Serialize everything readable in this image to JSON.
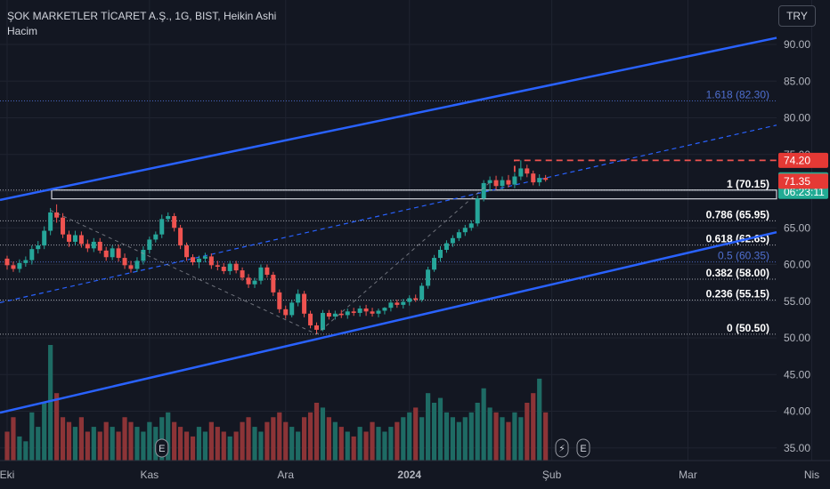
{
  "header": {
    "title": "ŞOK MARKETLER TİCARET A.Ş., 1G, BIST, Heikin Ashi",
    "volume_label": "Hacim"
  },
  "currency": "TRY",
  "colors": {
    "background": "#131722",
    "up": "#26a69a",
    "down": "#ef5350",
    "volume_up": "#1e6b64",
    "volume_down": "#8c3437",
    "channel": "#2962ff",
    "fib_lines": "#d1d4dc",
    "fib_blue": "#4f6fd0",
    "target_red": "#ef5350"
  },
  "chart_data": {
    "type": "candlestick",
    "y_axis": {
      "ticks": [
        35,
        40,
        45,
        50,
        55,
        60,
        65,
        70,
        75,
        80,
        85,
        90
      ],
      "tick_labels": [
        "35.00",
        "40.00",
        "45.00",
        "50.00",
        "55.00",
        "60.00",
        "65.00",
        "70.00",
        "75.00",
        "80.00",
        "85.00",
        "90.00"
      ]
    },
    "x_axis": {
      "labels": [
        {
          "text": "Eki",
          "bar": 0
        },
        {
          "text": "Kas",
          "bar": 23
        },
        {
          "text": "Ara",
          "bar": 45
        },
        {
          "text": "2024",
          "bar": 65
        },
        {
          "text": "Şub",
          "bar": 88
        },
        {
          "text": "Mar",
          "bar": 110
        },
        {
          "text": "Nis",
          "bar": 130
        }
      ]
    },
    "price_labels": {
      "last": {
        "value": "71.55",
        "countdown": "06:23:11"
      },
      "high": "74.20",
      "low": "71.35"
    },
    "fibonacci": [
      {
        "label": "1 (70.15)",
        "value": 70.15
      },
      {
        "label": "0.786 (65.95)",
        "value": 65.95
      },
      {
        "label": "0.618 (62.65)",
        "value": 62.65
      },
      {
        "label": "0.5 (60.35)",
        "value": 60.35
      },
      {
        "label": "0.382 (58.00)",
        "value": 58.0
      },
      {
        "label": "0.236 (55.15)",
        "value": 55.15
      },
      {
        "label": "0 (50.50)",
        "value": 50.5
      },
      {
        "label": "1.618 (82.30)",
        "value": 82.3
      }
    ],
    "candles": [
      [
        60.8,
        61.2,
        59.3,
        59.9
      ],
      [
        59.9,
        60.4,
        59.0,
        59.4
      ],
      [
        59.4,
        60.7,
        58.9,
        60.2
      ],
      [
        60.2,
        61.1,
        59.7,
        60.6
      ],
      [
        60.6,
        62.6,
        60.0,
        62.1
      ],
      [
        62.1,
        63.2,
        61.5,
        62.6
      ],
      [
        62.6,
        65.2,
        62.1,
        64.6
      ],
      [
        64.6,
        67.7,
        64.0,
        67.1
      ],
      [
        67.1,
        68.2,
        65.7,
        66.4
      ],
      [
        66.4,
        67.0,
        63.6,
        64.1
      ],
      [
        64.1,
        64.6,
        62.4,
        63.1
      ],
      [
        63.1,
        64.6,
        62.6,
        64.0
      ],
      [
        64.0,
        64.5,
        62.3,
        62.8
      ],
      [
        62.8,
        63.4,
        61.7,
        62.2
      ],
      [
        62.2,
        63.6,
        61.7,
        63.1
      ],
      [
        63.1,
        63.6,
        61.5,
        61.9
      ],
      [
        61.9,
        62.4,
        60.5,
        61.0
      ],
      [
        61.0,
        62.6,
        60.6,
        62.2
      ],
      [
        62.2,
        62.7,
        60.4,
        60.9
      ],
      [
        60.9,
        61.5,
        59.4,
        59.9
      ],
      [
        59.9,
        60.5,
        58.9,
        59.4
      ],
      [
        59.4,
        61.0,
        59.0,
        60.5
      ],
      [
        60.5,
        62.5,
        60.0,
        62.0
      ],
      [
        62.0,
        63.8,
        61.5,
        63.4
      ],
      [
        63.4,
        64.5,
        63.0,
        64.1
      ],
      [
        64.1,
        66.8,
        63.6,
        66.2
      ],
      [
        66.2,
        67.1,
        65.8,
        66.6
      ],
      [
        66.6,
        67.0,
        64.5,
        65.0
      ],
      [
        65.0,
        65.4,
        62.1,
        62.6
      ],
      [
        62.6,
        63.0,
        60.5,
        61.0
      ],
      [
        61.0,
        61.4,
        59.9,
        60.3
      ],
      [
        60.3,
        61.2,
        59.5,
        60.8
      ],
      [
        60.8,
        61.6,
        60.3,
        61.1
      ],
      [
        61.1,
        61.5,
        59.4,
        59.9
      ],
      [
        59.9,
        60.5,
        59.2,
        59.7
      ],
      [
        59.7,
        60.2,
        58.7,
        59.1
      ],
      [
        59.1,
        60.5,
        58.6,
        60.1
      ],
      [
        60.1,
        60.5,
        58.8,
        59.2
      ],
      [
        59.2,
        59.6,
        57.8,
        58.2
      ],
      [
        58.2,
        58.7,
        56.8,
        57.3
      ],
      [
        57.3,
        58.2,
        56.8,
        57.8
      ],
      [
        57.8,
        60.0,
        57.3,
        59.6
      ],
      [
        59.6,
        60.0,
        58.2,
        58.6
      ],
      [
        58.6,
        59.0,
        55.7,
        56.2
      ],
      [
        56.2,
        56.6,
        53.4,
        53.9
      ],
      [
        53.9,
        54.4,
        52.6,
        53.1
      ],
      [
        53.1,
        55.2,
        52.8,
        54.8
      ],
      [
        54.8,
        56.6,
        54.3,
        56.0
      ],
      [
        56.0,
        56.4,
        52.8,
        53.3
      ],
      [
        53.3,
        53.7,
        51.3,
        51.7
      ],
      [
        51.7,
        52.1,
        50.5,
        51.1
      ],
      [
        51.1,
        53.8,
        50.9,
        53.4
      ],
      [
        53.4,
        53.8,
        52.5,
        52.9
      ],
      [
        52.9,
        53.7,
        52.5,
        53.3
      ],
      [
        53.3,
        53.8,
        52.7,
        53.1
      ],
      [
        53.1,
        54.0,
        52.6,
        53.6
      ],
      [
        53.6,
        54.1,
        53.0,
        53.4
      ],
      [
        53.4,
        54.4,
        52.9,
        54.0
      ],
      [
        54.0,
        54.5,
        53.0,
        53.6
      ],
      [
        53.6,
        54.1,
        52.9,
        53.3
      ],
      [
        53.3,
        54.0,
        52.8,
        53.7
      ],
      [
        53.7,
        54.2,
        53.2,
        54.1
      ],
      [
        54.1,
        55.2,
        53.6,
        54.8
      ],
      [
        54.8,
        55.2,
        54.1,
        54.5
      ],
      [
        54.5,
        55.3,
        54.0,
        54.9
      ],
      [
        54.9,
        55.8,
        54.4,
        55.4
      ],
      [
        55.4,
        55.9,
        54.9,
        55.2
      ],
      [
        55.2,
        57.5,
        54.9,
        57.1
      ],
      [
        57.1,
        59.7,
        56.7,
        59.3
      ],
      [
        59.3,
        61.3,
        59.0,
        60.9
      ],
      [
        60.9,
        62.5,
        60.4,
        62.0
      ],
      [
        62.0,
        63.3,
        61.6,
        62.9
      ],
      [
        62.9,
        64.0,
        62.4,
        63.6
      ],
      [
        63.6,
        64.8,
        63.2,
        64.4
      ],
      [
        64.4,
        65.4,
        63.9,
        65.0
      ],
      [
        65.0,
        66.0,
        64.6,
        65.6
      ],
      [
        65.6,
        69.4,
        65.2,
        69.0
      ],
      [
        69.0,
        71.5,
        68.6,
        71.1
      ],
      [
        71.1,
        72.0,
        70.0,
        71.5
      ],
      [
        71.5,
        72.1,
        70.2,
        70.7
      ],
      [
        70.7,
        72.0,
        70.2,
        71.5
      ],
      [
        71.5,
        72.2,
        70.5,
        70.9
      ],
      [
        70.9,
        72.5,
        70.4,
        72.0
      ],
      [
        72.0,
        74.2,
        71.5,
        73.1
      ],
      [
        73.1,
        73.6,
        71.9,
        72.4
      ],
      [
        72.4,
        72.8,
        70.8,
        71.2
      ],
      [
        71.2,
        72.3,
        70.7,
        71.8
      ],
      [
        71.8,
        72.2,
        71.3,
        71.55
      ]
    ],
    "volume": [
      6,
      9,
      5,
      4,
      10,
      7,
      12,
      24,
      14,
      9,
      8,
      7,
      9,
      6,
      7,
      6,
      8,
      7,
      6,
      9,
      8,
      7,
      6,
      8,
      7,
      9,
      10,
      8,
      7,
      6,
      5,
      7,
      6,
      8,
      7,
      6,
      5,
      6,
      8,
      9,
      7,
      6,
      8,
      9,
      10,
      8,
      7,
      6,
      9,
      10,
      12,
      11,
      9,
      8,
      7,
      6,
      5,
      7,
      6,
      8,
      7,
      6,
      7,
      8,
      9,
      10,
      11,
      9,
      14,
      12,
      13,
      10,
      9,
      8,
      9,
      10,
      12,
      15,
      11,
      10,
      9,
      8,
      10,
      9,
      12,
      14,
      17,
      10
    ]
  }
}
